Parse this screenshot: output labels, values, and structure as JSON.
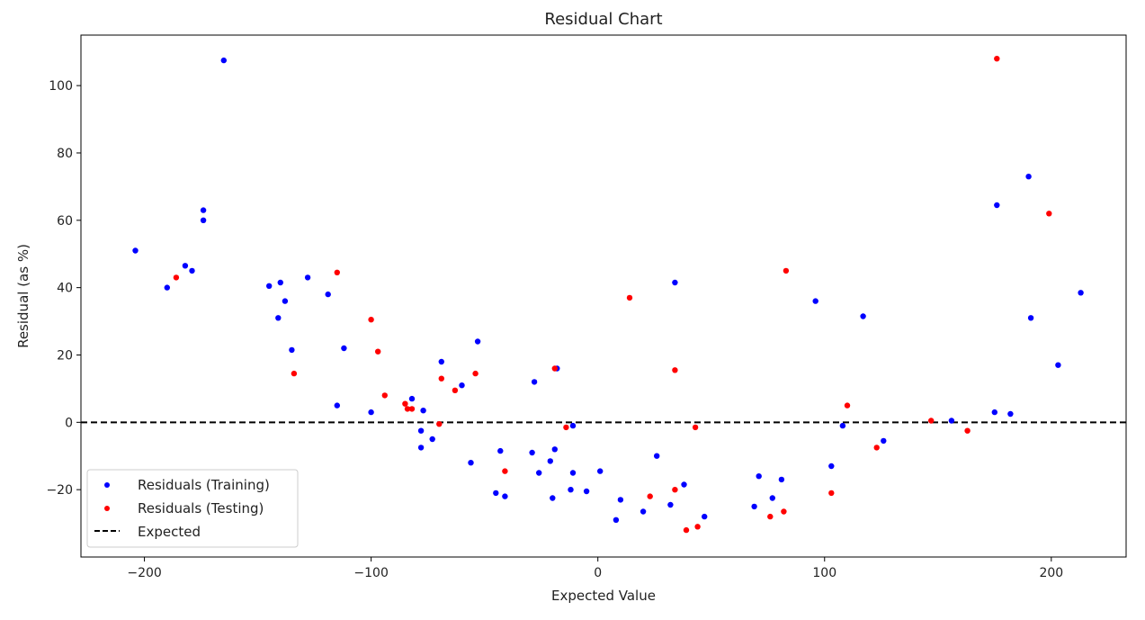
{
  "chart_data": {
    "type": "scatter",
    "title": "Residual Chart",
    "xlabel": "Expected Value",
    "ylabel": "Residual (as %)",
    "xlim": [
      -228,
      233
    ],
    "ylim": [
      -40,
      115
    ],
    "xticks": [
      -200,
      -100,
      0,
      100,
      200
    ],
    "yticks": [
      -20,
      0,
      20,
      40,
      60,
      80,
      100
    ],
    "xtick_labels": [
      "−200",
      "−100",
      "0",
      "100",
      "200"
    ],
    "ytick_labels": [
      "−20",
      "0",
      "20",
      "40",
      "60",
      "80",
      "100"
    ],
    "grid": false,
    "legend_position": "lower-left",
    "reference_line": {
      "label": "Expected",
      "y": 0,
      "color": "#000000",
      "style": "dashed"
    },
    "series": [
      {
        "name": "Residuals (Training)",
        "color": "#0000ff",
        "points": [
          [
            -204,
            51
          ],
          [
            -190,
            40
          ],
          [
            -182,
            46.5
          ],
          [
            -179,
            45
          ],
          [
            -174,
            63
          ],
          [
            -174,
            60
          ],
          [
            -165,
            107.5
          ],
          [
            -145,
            40.5
          ],
          [
            -141,
            31
          ],
          [
            -140,
            41.5
          ],
          [
            -138,
            36
          ],
          [
            -135,
            21.5
          ],
          [
            -128,
            43
          ],
          [
            -119,
            38
          ],
          [
            -115,
            5
          ],
          [
            -112,
            22
          ],
          [
            -100,
            3
          ],
          [
            -82,
            7
          ],
          [
            -78,
            -2.5
          ],
          [
            -78,
            -7.5
          ],
          [
            -77,
            3.5
          ],
          [
            -73,
            -5
          ],
          [
            -69,
            18
          ],
          [
            -60,
            11
          ],
          [
            -56,
            -12
          ],
          [
            -53,
            24
          ],
          [
            -45,
            -21
          ],
          [
            -43,
            -8.5
          ],
          [
            -41,
            -22
          ],
          [
            -29,
            -9
          ],
          [
            -28,
            12
          ],
          [
            -26,
            -15
          ],
          [
            -21,
            -11.5
          ],
          [
            -20,
            -22.5
          ],
          [
            -19,
            -8
          ],
          [
            -18,
            16
          ],
          [
            -12,
            -20
          ],
          [
            -11,
            -1
          ],
          [
            -11,
            -15
          ],
          [
            -5,
            -20.5
          ],
          [
            1,
            -14.5
          ],
          [
            8,
            -29
          ],
          [
            10,
            -23
          ],
          [
            20,
            -26.5
          ],
          [
            26,
            -10
          ],
          [
            32,
            -24.5
          ],
          [
            34,
            41.5
          ],
          [
            38,
            -18.5
          ],
          [
            47,
            -28
          ],
          [
            69,
            -25
          ],
          [
            71,
            -16
          ],
          [
            77,
            -22.5
          ],
          [
            81,
            -17
          ],
          [
            96,
            36
          ],
          [
            103,
            -13
          ],
          [
            108,
            -1
          ],
          [
            117,
            31.5
          ],
          [
            126,
            -5.5
          ],
          [
            156,
            0.5
          ],
          [
            175,
            3
          ],
          [
            176,
            64.5
          ],
          [
            182,
            2.5
          ],
          [
            190,
            73
          ],
          [
            191,
            31
          ],
          [
            203,
            17
          ],
          [
            213,
            38.5
          ]
        ]
      },
      {
        "name": "Residuals (Testing)",
        "color": "#ff0000",
        "points": [
          [
            -186,
            43
          ],
          [
            -134,
            14.5
          ],
          [
            -115,
            44.5
          ],
          [
            -100,
            30.5
          ],
          [
            -97,
            21
          ],
          [
            -94,
            8
          ],
          [
            -85,
            5.5
          ],
          [
            -84,
            4
          ],
          [
            -82,
            4
          ],
          [
            -70,
            -0.5
          ],
          [
            -69,
            13
          ],
          [
            -63,
            9.5
          ],
          [
            -54,
            14.5
          ],
          [
            -41,
            -14.5
          ],
          [
            -19,
            16
          ],
          [
            -14,
            -1.5
          ],
          [
            14,
            37
          ],
          [
            23,
            -22
          ],
          [
            34,
            -20
          ],
          [
            34,
            15.5
          ],
          [
            39,
            -32
          ],
          [
            43,
            -1.5
          ],
          [
            44,
            -31
          ],
          [
            76,
            -28
          ],
          [
            82,
            -26.5
          ],
          [
            83,
            45
          ],
          [
            103,
            -21
          ],
          [
            110,
            5
          ],
          [
            123,
            -7.5
          ],
          [
            147,
            0.5
          ],
          [
            163,
            -2.5
          ],
          [
            176,
            108
          ],
          [
            199,
            62
          ]
        ]
      }
    ]
  }
}
